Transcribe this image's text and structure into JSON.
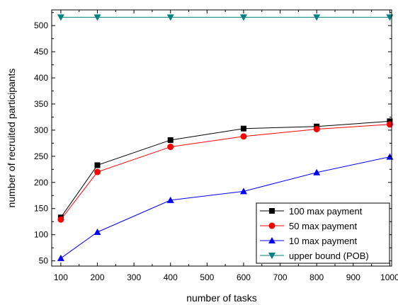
{
  "chart_data": {
    "type": "line",
    "title": "",
    "xlabel": "number of tasks",
    "ylabel": "number of recruited participants",
    "xlim": [
      75,
      1005
    ],
    "ylim": [
      40,
      530
    ],
    "xticks": [
      100,
      200,
      300,
      400,
      500,
      600,
      700,
      800,
      900,
      1000
    ],
    "yticks": [
      50,
      100,
      150,
      200,
      250,
      300,
      350,
      400,
      450,
      500
    ],
    "x": [
      100,
      200,
      400,
      600,
      800,
      1000
    ],
    "grid": false,
    "legend_position": "bottom-right",
    "series": [
      {
        "name": "100 max payment",
        "color": "#000000",
        "marker": "square",
        "values": [
          133,
          233,
          281,
          303,
          307,
          317
        ]
      },
      {
        "name": "50 max payment",
        "color": "#ff0000",
        "marker": "circle",
        "values": [
          129,
          220,
          268,
          288,
          302,
          311
        ]
      },
      {
        "name": "10 max payment",
        "color": "#0000ff",
        "marker": "triangle-up",
        "values": [
          55,
          105,
          166,
          183,
          219,
          249
        ]
      },
      {
        "name": "upper bound (POB)",
        "color": "#008080",
        "marker": "triangle-down",
        "values": [
          516,
          516,
          516,
          516,
          516,
          516
        ]
      }
    ]
  }
}
